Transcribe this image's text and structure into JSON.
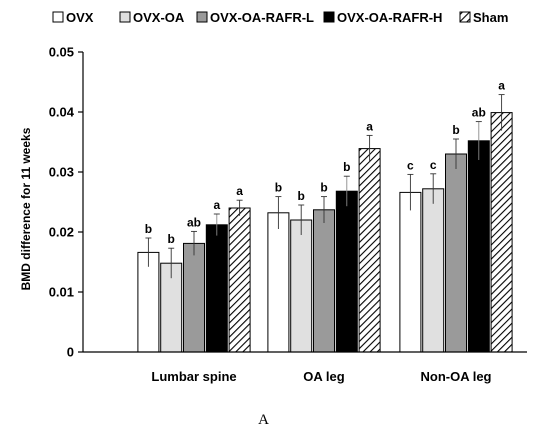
{
  "caption": "A",
  "chart_data": {
    "type": "bar",
    "title": "",
    "xlabel": "",
    "ylabel": "BMD difference for 11 weeks",
    "ylim": [
      0,
      0.05
    ],
    "yticks": [
      "0",
      "0.01",
      "0.02",
      "0.03",
      "0.04",
      "0.05"
    ],
    "legend_position": "top",
    "grid": false,
    "categories": [
      "Lumbar spine",
      "OA leg",
      "Non-OA leg"
    ],
    "series": [
      {
        "name": "OVX",
        "fill": "#ffffff",
        "pattern": "solid",
        "values": [
          0.0166,
          0.0232,
          0.0266
        ],
        "errors": [
          0.0024,
          0.0027,
          0.003
        ],
        "letters": [
          "b",
          "b",
          "c"
        ]
      },
      {
        "name": "OVX-OA",
        "fill": "#e0e0e0",
        "pattern": "solid",
        "values": [
          0.0148,
          0.022,
          0.0272
        ],
        "errors": [
          0.0025,
          0.0025,
          0.0025
        ],
        "letters": [
          "b",
          "b",
          "c"
        ]
      },
      {
        "name": "OVX-OA-RAFR-L",
        "fill": "#9a9a9a",
        "pattern": "solid",
        "values": [
          0.0181,
          0.0237,
          0.033
        ],
        "errors": [
          0.002,
          0.0022,
          0.0025
        ],
        "letters": [
          "ab",
          "b",
          "b"
        ]
      },
      {
        "name": "OVX-OA-RAFR-H",
        "fill": "#000000",
        "pattern": "solid",
        "values": [
          0.0212,
          0.0268,
          0.0352
        ],
        "errors": [
          0.0018,
          0.0025,
          0.0032
        ],
        "letters": [
          "a",
          "b",
          "ab"
        ]
      },
      {
        "name": "Sham",
        "fill": "#ffffff",
        "pattern": "hatch",
        "values": [
          0.024,
          0.0339,
          0.0399
        ],
        "errors": [
          0.0013,
          0.0022,
          0.003
        ],
        "letters": [
          "a",
          "a",
          "a"
        ]
      }
    ]
  }
}
